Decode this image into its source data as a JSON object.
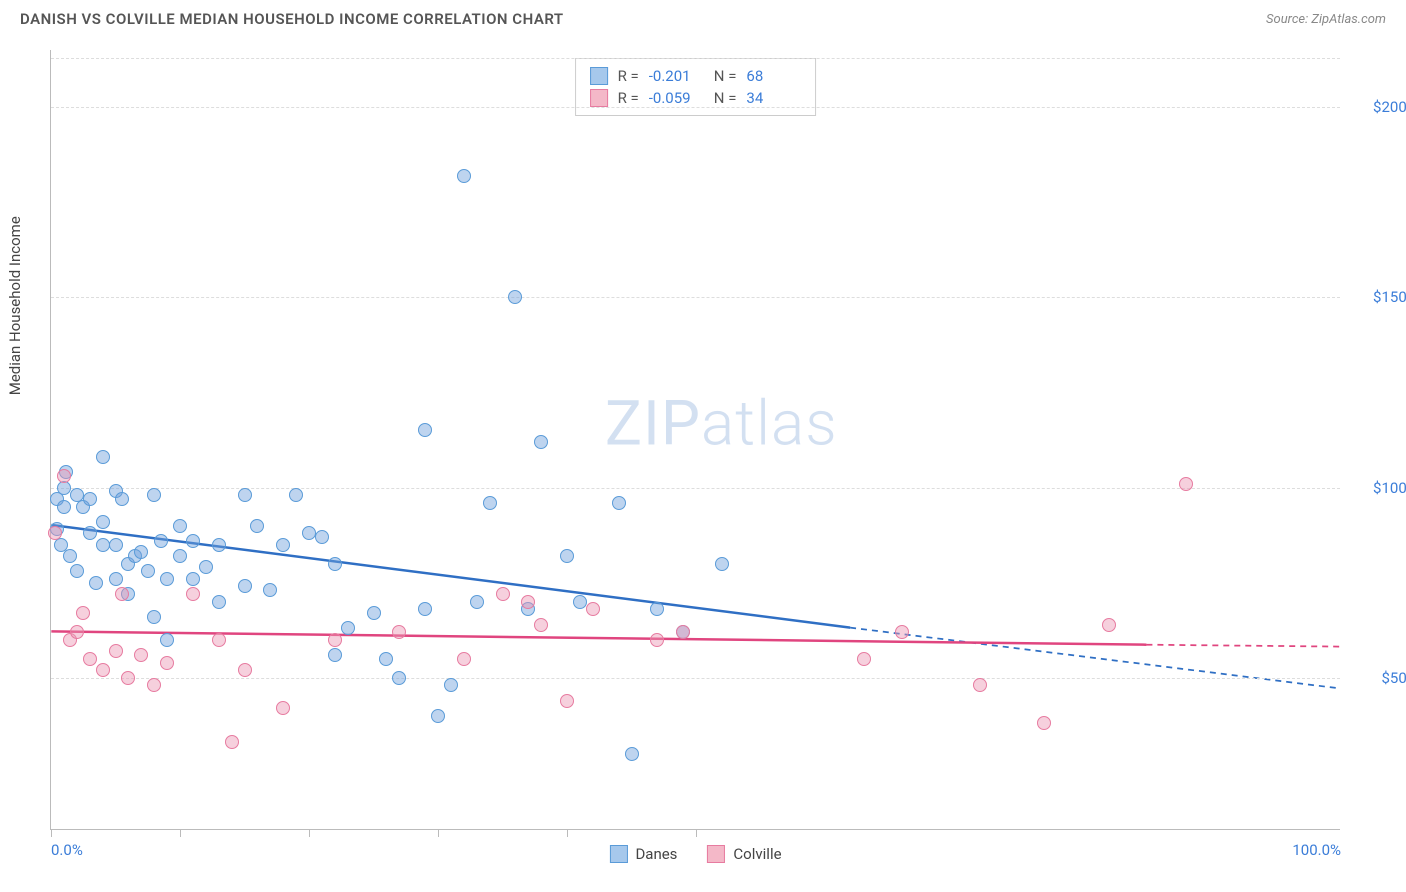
{
  "title": "DANISH VS COLVILLE MEDIAN HOUSEHOLD INCOME CORRELATION CHART",
  "source": "Source: ZipAtlas.com",
  "watermark": {
    "part1": "ZIP",
    "part2": "atlas"
  },
  "chart": {
    "type": "scatter",
    "ylabel": "Median Household Income",
    "xlim": [
      0,
      100
    ],
    "ylim": [
      10000,
      215000
    ],
    "background_color": "#ffffff",
    "grid_color": "#dddddd",
    "axis_color": "#bbbbbb",
    "yticks": [
      {
        "value": 50000,
        "label": "$50,000"
      },
      {
        "value": 100000,
        "label": "$100,000"
      },
      {
        "value": 150000,
        "label": "$150,000"
      },
      {
        "value": 200000,
        "label": "$200,000"
      }
    ],
    "xticks": [
      0,
      10,
      20,
      30,
      40,
      50
    ],
    "xtick_labels": [
      {
        "value": 0,
        "label": "0.0%"
      },
      {
        "value": 100,
        "label": "100.0%"
      }
    ],
    "legend_top": [
      {
        "color_fill": "#a6c8ec",
        "color_border": "#5a9bd8",
        "r_label": "R =",
        "r_value": "-0.201",
        "n_label": "N =",
        "n_value": "68"
      },
      {
        "color_fill": "#f4b8c8",
        "color_border": "#e77ba0",
        "r_label": "R =",
        "r_value": "-0.059",
        "n_label": "N =",
        "n_value": "34"
      }
    ],
    "legend_bottom": [
      {
        "color_fill": "#a6c8ec",
        "color_border": "#5a9bd8",
        "label": "Danes"
      },
      {
        "color_fill": "#f4b8c8",
        "color_border": "#e77ba0",
        "label": "Colville"
      }
    ],
    "series": [
      {
        "name": "Danes",
        "color_fill": "rgba(110,160,220,0.45)",
        "color_border": "#5a9bd8",
        "marker_size": 14,
        "trend": {
          "x1": 0,
          "y1": 90000,
          "x2": 62,
          "y2": 63000,
          "x2_dash": 100,
          "y2_dash": 47000,
          "color": "#2f6fc4",
          "width": 2.5
        },
        "points": [
          [
            0.5,
            89000
          ],
          [
            0.5,
            97000
          ],
          [
            0.8,
            85000
          ],
          [
            1,
            100000
          ],
          [
            1,
            95000
          ],
          [
            1.2,
            104000
          ],
          [
            1.5,
            82000
          ],
          [
            2,
            98000
          ],
          [
            2,
            78000
          ],
          [
            2.5,
            95000
          ],
          [
            3,
            88000
          ],
          [
            3,
            97000
          ],
          [
            3.5,
            75000
          ],
          [
            4,
            108000
          ],
          [
            4,
            85000
          ],
          [
            4,
            91000
          ],
          [
            5,
            99000
          ],
          [
            5,
            76000
          ],
          [
            5,
            85000
          ],
          [
            5.5,
            97000
          ],
          [
            6,
            72000
          ],
          [
            6,
            80000
          ],
          [
            6.5,
            82000
          ],
          [
            7,
            83000
          ],
          [
            7.5,
            78000
          ],
          [
            8,
            98000
          ],
          [
            8,
            66000
          ],
          [
            8.5,
            86000
          ],
          [
            9,
            60000
          ],
          [
            9,
            76000
          ],
          [
            10,
            82000
          ],
          [
            10,
            90000
          ],
          [
            11,
            76000
          ],
          [
            11,
            86000
          ],
          [
            12,
            79000
          ],
          [
            13,
            70000
          ],
          [
            13,
            85000
          ],
          [
            15,
            74000
          ],
          [
            15,
            98000
          ],
          [
            16,
            90000
          ],
          [
            17,
            73000
          ],
          [
            18,
            85000
          ],
          [
            19,
            98000
          ],
          [
            20,
            88000
          ],
          [
            21,
            87000
          ],
          [
            22,
            80000
          ],
          [
            22,
            56000
          ],
          [
            23,
            63000
          ],
          [
            25,
            67000
          ],
          [
            26,
            55000
          ],
          [
            27,
            50000
          ],
          [
            29,
            115000
          ],
          [
            29,
            68000
          ],
          [
            30,
            40000
          ],
          [
            31,
            48000
          ],
          [
            32,
            182000
          ],
          [
            33,
            70000
          ],
          [
            34,
            96000
          ],
          [
            36,
            150000
          ],
          [
            37,
            68000
          ],
          [
            38,
            112000
          ],
          [
            40,
            82000
          ],
          [
            41,
            70000
          ],
          [
            44,
            96000
          ],
          [
            45,
            30000
          ],
          [
            47,
            68000
          ],
          [
            49,
            62000
          ],
          [
            52,
            80000
          ]
        ]
      },
      {
        "name": "Colville",
        "color_fill": "rgba(235,150,180,0.45)",
        "color_border": "#e77ba0",
        "marker_size": 14,
        "trend": {
          "x1": 0,
          "y1": 62000,
          "x2": 85,
          "y2": 58500,
          "x2_dash": 100,
          "y2_dash": 58000,
          "color": "#e0457f",
          "width": 2.5
        },
        "points": [
          [
            0.3,
            88000
          ],
          [
            1,
            103000
          ],
          [
            1.5,
            60000
          ],
          [
            2,
            62000
          ],
          [
            2.5,
            67000
          ],
          [
            3,
            55000
          ],
          [
            4,
            52000
          ],
          [
            5,
            57000
          ],
          [
            5.5,
            72000
          ],
          [
            6,
            50000
          ],
          [
            7,
            56000
          ],
          [
            8,
            48000
          ],
          [
            9,
            54000
          ],
          [
            11,
            72000
          ],
          [
            13,
            60000
          ],
          [
            14,
            33000
          ],
          [
            15,
            52000
          ],
          [
            18,
            42000
          ],
          [
            22,
            60000
          ],
          [
            27,
            62000
          ],
          [
            32,
            55000
          ],
          [
            35,
            72000
          ],
          [
            37,
            70000
          ],
          [
            38,
            64000
          ],
          [
            40,
            44000
          ],
          [
            42,
            68000
          ],
          [
            47,
            60000
          ],
          [
            49,
            62000
          ],
          [
            63,
            55000
          ],
          [
            66,
            62000
          ],
          [
            72,
            48000
          ],
          [
            77,
            38000
          ],
          [
            82,
            64000
          ],
          [
            88,
            101000
          ]
        ]
      }
    ]
  }
}
